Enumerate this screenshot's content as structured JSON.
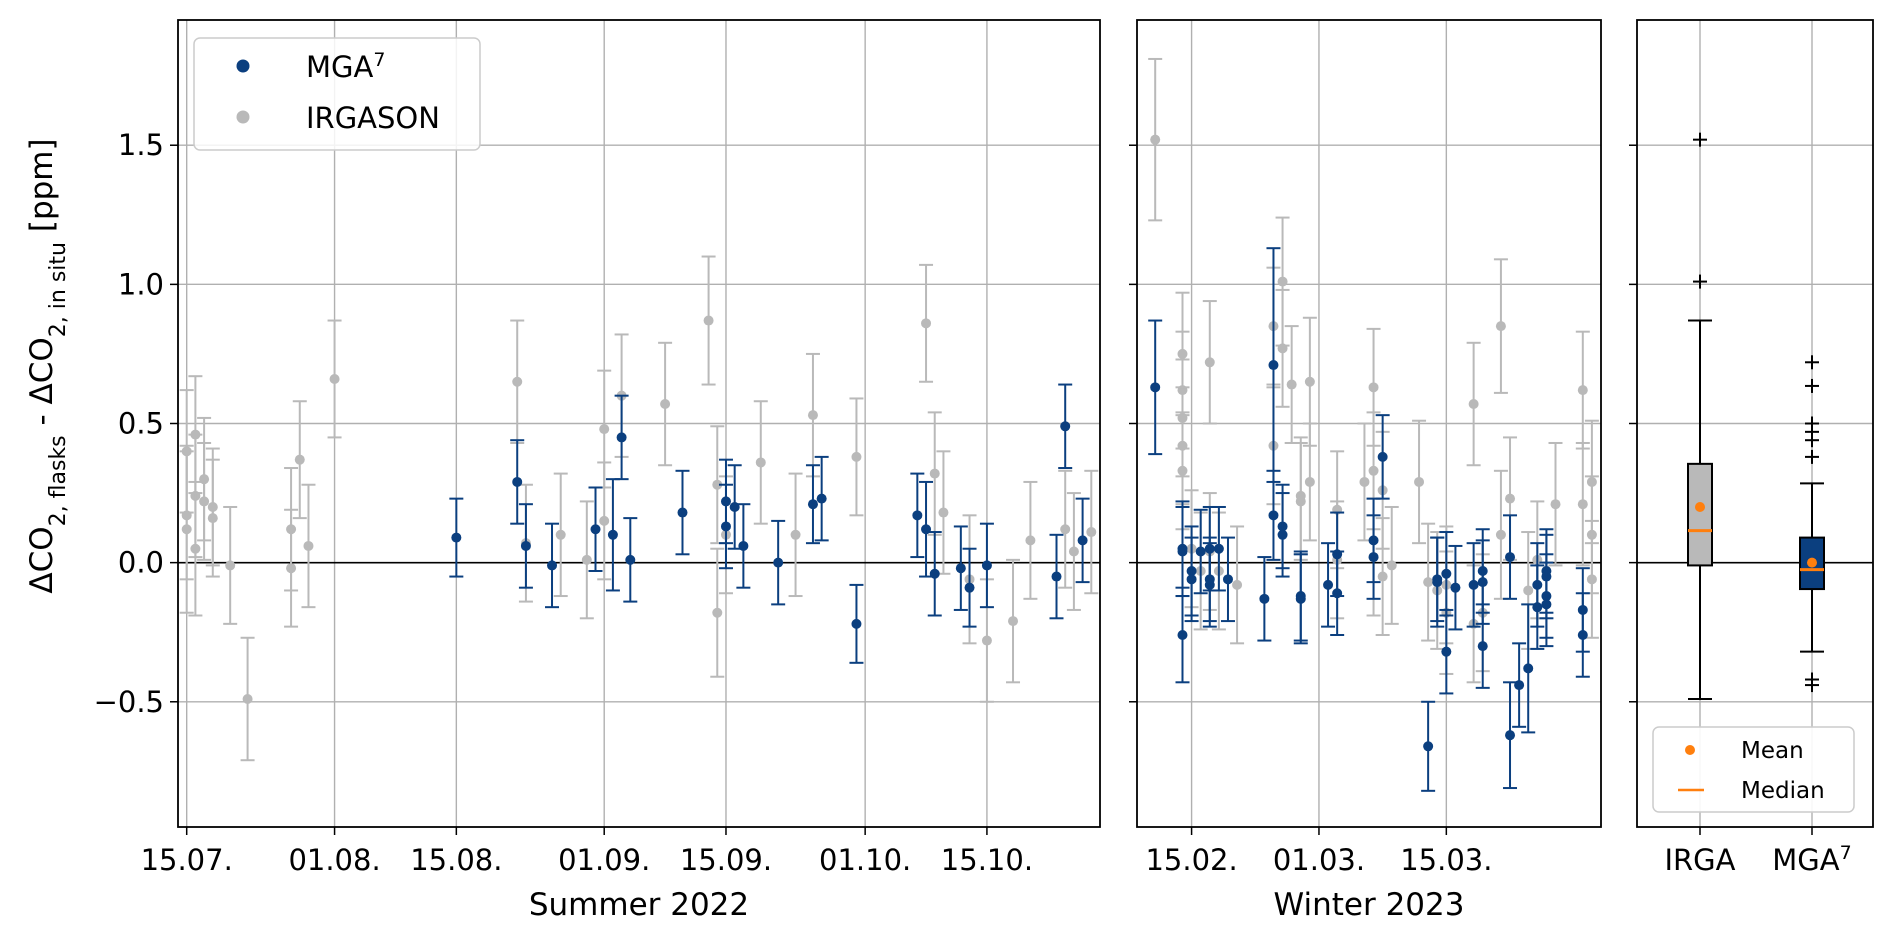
{
  "colors": {
    "mga": "#0b3f7f",
    "irga": "#b9b9b9",
    "mean": "#ff7f0e",
    "median": "#ff7f0e",
    "grid": "#b0b0b0"
  },
  "ylabel": {
    "main": "ΔCO",
    "sub1": "2, flasks",
    "mid": " - ΔCO",
    "sub2": "2, in situ",
    "unit": " [ppm]"
  },
  "y_ticks": [
    {
      "v": 1.5,
      "label": "1.5"
    },
    {
      "v": 1.0,
      "label": "1.0"
    },
    {
      "v": 0.5,
      "label": "0.5"
    },
    {
      "v": 0.0,
      "label": "0.0"
    },
    {
      "v": -0.5,
      "label": "−0.5"
    }
  ],
  "legend": [
    {
      "name": "MGA",
      "sup": "7"
    },
    {
      "name": "IRGASON",
      "sup": ""
    }
  ],
  "box_legend": {
    "mean": "Mean",
    "median": "Median"
  },
  "chart_data": [
    {
      "type": "scatter",
      "xlabel": "Summer 2022",
      "ylabel": "ΔCO2, flasks - ΔCO2, in situ [ppm]",
      "x_ticks": [
        "15.07.",
        "01.08.",
        "15.08.",
        "01.09.",
        "15.09.",
        "01.10.",
        "15.10."
      ],
      "xlim": [
        "2022-07-14",
        "2022-10-28"
      ],
      "ylim": [
        -0.95,
        1.95
      ],
      "grid": true,
      "series": [
        {
          "name": "IRGASON",
          "points": [
            [
              "2022-07-15",
              0.4,
              0.22
            ],
            [
              "2022-07-15",
              0.12,
              0.3
            ],
            [
              "2022-07-15",
              0.17,
              0.23
            ],
            [
              "2022-07-16",
              0.24,
              0.22
            ],
            [
              "2022-07-16",
              0.05,
              0.24
            ],
            [
              "2022-07-16",
              0.46,
              0.21
            ],
            [
              "2022-07-17",
              0.3,
              0.22
            ],
            [
              "2022-07-17",
              0.22,
              0.21
            ],
            [
              "2022-07-18",
              0.16,
              0.21
            ],
            [
              "2022-07-18",
              0.2,
              0.21
            ],
            [
              "2022-07-20",
              -0.01,
              0.21
            ],
            [
              "2022-07-22",
              -0.49,
              0.22
            ],
            [
              "2022-07-27",
              0.12,
              0.22
            ],
            [
              "2022-07-27",
              -0.02,
              0.21
            ],
            [
              "2022-07-28",
              0.37,
              0.21
            ],
            [
              "2022-07-29",
              0.06,
              0.22
            ],
            [
              "2022-08-01",
              0.66,
              0.21
            ],
            [
              "2022-08-22",
              0.65,
              0.22
            ],
            [
              "2022-08-23",
              0.07,
              0.21
            ],
            [
              "2022-08-27",
              0.1,
              0.22
            ],
            [
              "2022-08-30",
              0.01,
              0.21
            ],
            [
              "2022-09-01",
              0.15,
              0.21
            ],
            [
              "2022-09-01",
              0.48,
              0.21
            ],
            [
              "2022-09-03",
              0.6,
              0.22
            ],
            [
              "2022-09-08",
              0.57,
              0.22
            ],
            [
              "2022-09-13",
              0.87,
              0.23
            ],
            [
              "2022-09-14",
              0.28,
              0.21
            ],
            [
              "2022-09-14",
              -0.18,
              0.23
            ],
            [
              "2022-09-15",
              0.1,
              0.21
            ],
            [
              "2022-09-19",
              0.36,
              0.22
            ],
            [
              "2022-09-23",
              0.1,
              0.22
            ],
            [
              "2022-09-25",
              0.53,
              0.22
            ],
            [
              "2022-09-30",
              0.38,
              0.21
            ],
            [
              "2022-10-08",
              0.86,
              0.21
            ],
            [
              "2022-10-09",
              0.32,
              0.22
            ],
            [
              "2022-10-10",
              0.18,
              0.22
            ],
            [
              "2022-10-13",
              -0.06,
              0.23
            ],
            [
              "2022-10-15",
              -0.28,
              0.22
            ],
            [
              "2022-10-18",
              -0.21,
              0.22
            ],
            [
              "2022-10-20",
              0.08,
              0.21
            ],
            [
              "2022-10-24",
              0.12,
              0.21
            ],
            [
              "2022-10-25",
              0.04,
              0.21
            ],
            [
              "2022-10-27",
              0.11,
              0.22
            ]
          ]
        },
        {
          "name": "MGA7",
          "points": [
            [
              "2022-08-15",
              0.09,
              0.14
            ],
            [
              "2022-08-22",
              0.29,
              0.15
            ],
            [
              "2022-08-23",
              0.06,
              0.15
            ],
            [
              "2022-08-26",
              -0.01,
              0.15
            ],
            [
              "2022-08-31",
              0.12,
              0.15
            ],
            [
              "2022-09-02",
              0.1,
              0.2
            ],
            [
              "2022-09-03",
              0.45,
              0.15
            ],
            [
              "2022-09-04",
              0.01,
              0.15
            ],
            [
              "2022-09-10",
              0.18,
              0.15
            ],
            [
              "2022-09-15",
              0.13,
              0.15
            ],
            [
              "2022-09-15",
              0.22,
              0.15
            ],
            [
              "2022-09-16",
              0.2,
              0.15
            ],
            [
              "2022-09-17",
              0.06,
              0.15
            ],
            [
              "2022-09-21",
              0.0,
              0.15
            ],
            [
              "2022-09-25",
              0.21,
              0.14
            ],
            [
              "2022-09-26",
              0.23,
              0.15
            ],
            [
              "2022-09-30",
              -0.22,
              0.14
            ],
            [
              "2022-10-07",
              0.17,
              0.15
            ],
            [
              "2022-10-08",
              0.12,
              0.17
            ],
            [
              "2022-10-09",
              -0.04,
              0.15
            ],
            [
              "2022-10-12",
              -0.02,
              0.15
            ],
            [
              "2022-10-13",
              -0.09,
              0.14
            ],
            [
              "2022-10-15",
              -0.01,
              0.15
            ],
            [
              "2022-10-23",
              -0.05,
              0.15
            ],
            [
              "2022-10-24",
              0.49,
              0.15
            ],
            [
              "2022-10-26",
              0.08,
              0.15
            ]
          ]
        }
      ]
    },
    {
      "type": "scatter",
      "xlabel": "Winter 2023",
      "x_ticks": [
        "15.02.",
        "01.03.",
        "15.03."
      ],
      "xlim": [
        "2023-02-09",
        "2023-04-01"
      ],
      "ylim": [
        -0.95,
        1.95
      ],
      "grid": true,
      "series": [
        {
          "name": "IRGASON",
          "points": [
            [
              "2023-02-11",
              1.52,
              0.29
            ],
            [
              "2023-02-14",
              0.75,
              0.22
            ],
            [
              "2023-02-14",
              0.62,
              0.21
            ],
            [
              "2023-02-14",
              0.52,
              0.21
            ],
            [
              "2023-02-14",
              0.42,
              0.21
            ],
            [
              "2023-02-14",
              0.33,
              0.21
            ],
            [
              "2023-02-15",
              0.05,
              0.21
            ],
            [
              "2023-02-16",
              -0.03,
              0.21
            ],
            [
              "2023-02-17",
              0.72,
              0.22
            ],
            [
              "2023-02-17",
              0.04,
              0.21
            ],
            [
              "2023-02-18",
              -0.03,
              0.21
            ],
            [
              "2023-02-20",
              -0.08,
              0.21
            ],
            [
              "2023-02-24",
              0.42,
              0.21
            ],
            [
              "2023-02-24",
              0.85,
              0.21
            ],
            [
              "2023-02-25",
              1.01,
              0.23
            ],
            [
              "2023-02-25",
              0.77,
              0.21
            ],
            [
              "2023-02-26",
              0.64,
              0.21
            ],
            [
              "2023-02-27",
              0.24,
              0.21
            ],
            [
              "2023-02-27",
              0.22,
              0.21
            ],
            [
              "2023-02-28",
              0.65,
              0.23
            ],
            [
              "2023-02-28",
              0.29,
              0.21
            ],
            [
              "2023-03-03",
              0.01,
              0.21
            ],
            [
              "2023-03-03",
              0.19,
              0.21
            ],
            [
              "2023-03-06",
              0.29,
              0.21
            ],
            [
              "2023-03-07",
              0.63,
              0.21
            ],
            [
              "2023-03-07",
              0.33,
              0.21
            ],
            [
              "2023-03-07",
              0.02,
              0.21
            ],
            [
              "2023-03-08",
              -0.05,
              0.21
            ],
            [
              "2023-03-08",
              0.26,
              0.21
            ],
            [
              "2023-03-09",
              -0.01,
              0.21
            ],
            [
              "2023-03-12",
              0.29,
              0.22
            ],
            [
              "2023-03-13",
              -0.07,
              0.21
            ],
            [
              "2023-03-14",
              -0.1,
              0.21
            ],
            [
              "2023-03-15",
              -0.08,
              0.21
            ],
            [
              "2023-03-15",
              -0.18,
              0.22
            ],
            [
              "2023-03-18",
              0.57,
              0.22
            ],
            [
              "2023-03-18",
              -0.22,
              0.21
            ],
            [
              "2023-03-19",
              -0.18,
              0.21
            ],
            [
              "2023-03-21",
              0.85,
              0.24
            ],
            [
              "2023-03-21",
              0.1,
              0.23
            ],
            [
              "2023-03-22",
              0.23,
              0.22
            ],
            [
              "2023-03-24",
              -0.1,
              0.21
            ],
            [
              "2023-03-25",
              0.01,
              0.21
            ],
            [
              "2023-03-27",
              0.21,
              0.22
            ],
            [
              "2023-03-30",
              0.62,
              0.21
            ],
            [
              "2023-03-30",
              0.21,
              0.22
            ],
            [
              "2023-03-31",
              0.29,
              0.22
            ],
            [
              "2023-03-31",
              -0.06,
              0.21
            ],
            [
              "2023-03-31",
              0.1,
              0.21
            ]
          ]
        },
        {
          "name": "MGA7",
          "points": [
            [
              "2023-02-11",
              0.63,
              0.24
            ],
            [
              "2023-02-14",
              0.05,
              0.17
            ],
            [
              "2023-02-14",
              -0.26,
              0.17
            ],
            [
              "2023-02-14",
              0.04,
              0.16
            ],
            [
              "2023-02-15",
              -0.03,
              0.16
            ],
            [
              "2023-02-15",
              -0.06,
              0.15
            ],
            [
              "2023-02-16",
              0.04,
              0.15
            ],
            [
              "2023-02-17",
              0.05,
              0.15
            ],
            [
              "2023-02-17",
              -0.08,
              0.15
            ],
            [
              "2023-02-17",
              -0.06,
              0.15
            ],
            [
              "2023-02-18",
              0.05,
              0.15
            ],
            [
              "2023-02-19",
              -0.06,
              0.15
            ],
            [
              "2023-02-23",
              -0.13,
              0.15
            ],
            [
              "2023-02-24",
              0.71,
              0.42
            ],
            [
              "2023-02-24",
              0.17,
              0.16
            ],
            [
              "2023-02-25",
              0.13,
              0.15
            ],
            [
              "2023-02-25",
              0.1,
              0.15
            ],
            [
              "2023-02-27",
              -0.12,
              0.16
            ],
            [
              "2023-02-27",
              -0.13,
              0.16
            ],
            [
              "2023-03-02",
              -0.08,
              0.15
            ],
            [
              "2023-03-03",
              0.03,
              0.15
            ],
            [
              "2023-03-03",
              -0.11,
              0.15
            ],
            [
              "2023-03-07",
              0.08,
              0.15
            ],
            [
              "2023-03-07",
              0.02,
              0.15
            ],
            [
              "2023-03-08",
              0.38,
              0.15
            ],
            [
              "2023-03-13",
              -0.66,
              0.16
            ],
            [
              "2023-03-14",
              -0.06,
              0.15
            ],
            [
              "2023-03-14",
              -0.07,
              0.16
            ],
            [
              "2023-03-15",
              -0.04,
              0.15
            ],
            [
              "2023-03-15",
              -0.32,
              0.15
            ],
            [
              "2023-03-16",
              -0.09,
              0.15
            ],
            [
              "2023-03-18",
              -0.08,
              0.15
            ],
            [
              "2023-03-19",
              -0.03,
              0.15
            ],
            [
              "2023-03-19",
              -0.07,
              0.15
            ],
            [
              "2023-03-19",
              -0.3,
              0.15
            ],
            [
              "2023-03-22",
              -0.62,
              0.19
            ],
            [
              "2023-03-22",
              0.02,
              0.15
            ],
            [
              "2023-03-23",
              -0.44,
              0.15
            ],
            [
              "2023-03-24",
              -0.38,
              0.23
            ],
            [
              "2023-03-25",
              -0.08,
              0.15
            ],
            [
              "2023-03-25",
              -0.16,
              0.15
            ],
            [
              "2023-03-26",
              -0.12,
              0.15
            ],
            [
              "2023-03-26",
              -0.05,
              0.15
            ],
            [
              "2023-03-26",
              -0.03,
              0.15
            ],
            [
              "2023-03-26",
              -0.15,
              0.15
            ],
            [
              "2023-03-30",
              -0.17,
              0.15
            ],
            [
              "2023-03-30",
              -0.26,
              0.15
            ]
          ]
        }
      ]
    },
    {
      "type": "box",
      "categories": [
        "IRGA",
        "MGA7"
      ],
      "category_labels": [
        {
          "name": "IRGA",
          "sup": ""
        },
        {
          "name": "MGA",
          "sup": "7"
        }
      ],
      "ylim": [
        -0.95,
        1.95
      ],
      "grid": true,
      "boxes": [
        {
          "name": "IRGA",
          "q1": -0.01,
          "median": 0.115,
          "q3": 0.355,
          "whisker_low": -0.49,
          "whisker_high": 0.87,
          "mean": 0.2,
          "outliers": [
            1.52,
            1.01
          ]
        },
        {
          "name": "MGA7",
          "q1": -0.095,
          "median": -0.025,
          "q3": 0.09,
          "whisker_low": -0.32,
          "whisker_high": 0.285,
          "mean": 0.0,
          "outliers": [
            0.72,
            0.635,
            0.5,
            0.47,
            0.44,
            0.38,
            -0.42,
            -0.44
          ]
        }
      ]
    }
  ]
}
